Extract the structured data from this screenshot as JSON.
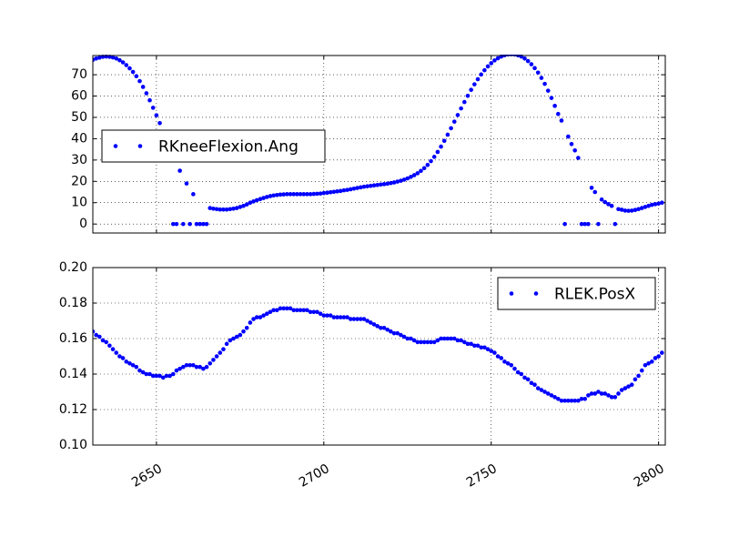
{
  "chart_data": [
    {
      "type": "scatter",
      "x": [
        2631,
        2632,
        2633,
        2634,
        2635,
        2636,
        2637,
        2638,
        2639,
        2640,
        2641,
        2642,
        2643,
        2644,
        2645,
        2646,
        2647,
        2648,
        2649,
        2650,
        2651,
        2652,
        2653,
        2654,
        2655,
        2656,
        2657,
        2658,
        2659,
        2660,
        2661,
        2662,
        2663,
        2664,
        2665,
        2666,
        2667,
        2668,
        2669,
        2670,
        2671,
        2672,
        2673,
        2674,
        2675,
        2676,
        2677,
        2678,
        2679,
        2680,
        2681,
        2682,
        2683,
        2684,
        2685,
        2686,
        2687,
        2688,
        2689,
        2690,
        2691,
        2692,
        2693,
        2694,
        2695,
        2696,
        2697,
        2698,
        2699,
        2700,
        2701,
        2702,
        2703,
        2704,
        2705,
        2706,
        2707,
        2708,
        2709,
        2710,
        2711,
        2712,
        2713,
        2714,
        2715,
        2716,
        2717,
        2718,
        2719,
        2720,
        2721,
        2722,
        2723,
        2724,
        2725,
        2726,
        2727,
        2728,
        2729,
        2730,
        2731,
        2732,
        2733,
        2734,
        2735,
        2736,
        2737,
        2738,
        2739,
        2740,
        2741,
        2742,
        2743,
        2744,
        2745,
        2746,
        2747,
        2748,
        2749,
        2750,
        2751,
        2752,
        2753,
        2754,
        2755,
        2756,
        2757,
        2758,
        2759,
        2760,
        2761,
        2762,
        2763,
        2764,
        2765,
        2766,
        2767,
        2768,
        2769,
        2770,
        2771,
        2772,
        2773,
        2774,
        2775,
        2776,
        2777,
        2778,
        2779,
        2780,
        2781,
        2782,
        2783,
        2784,
        2785,
        2786,
        2787,
        2788,
        2789,
        2790,
        2791,
        2792,
        2793,
        2794,
        2795,
        2796,
        2797,
        2798,
        2799,
        2800,
        2801
      ],
      "series": [
        {
          "name": "RKneeFlexion.Ang",
          "color": "#0000ff",
          "values": [
            77,
            77.6,
            78,
            78.4,
            78.5,
            78.4,
            78.1,
            77.6,
            76.8,
            75.8,
            74.5,
            73,
            71.3,
            69.3,
            67,
            64.3,
            61.3,
            58,
            54.5,
            51,
            47.3,
            null,
            null,
            null,
            0,
            0,
            25,
            0,
            19,
            0,
            14,
            0,
            0,
            0,
            0,
            7.5,
            7.2,
            7,
            6.8,
            6.8,
            6.8,
            7,
            7.2,
            7.5,
            8,
            8.5,
            9.2,
            10,
            10.6,
            11.2,
            11.7,
            12.2,
            12.7,
            13.1,
            13.4,
            13.6,
            13.8,
            13.9,
            14,
            14,
            14,
            14,
            14,
            14,
            14,
            14,
            14.1,
            14.2,
            14.3,
            14.5,
            14.7,
            14.9,
            15.1,
            15.3,
            15.5,
            15.8,
            16,
            16.3,
            16.6,
            16.9,
            17.2,
            17.5,
            17.7,
            17.9,
            18.1,
            18.3,
            18.5,
            18.7,
            18.9,
            19.2,
            19.5,
            19.9,
            20.3,
            20.8,
            21.4,
            22.1,
            22.9,
            23.8,
            24.9,
            26.2,
            27.7,
            29.5,
            31.5,
            33.8,
            36.3,
            39,
            41.9,
            44.9,
            48,
            51.1,
            54.2,
            57.2,
            60.1,
            62.9,
            65.5,
            67.9,
            70.1,
            72.1,
            73.9,
            75.4,
            76.7,
            77.7,
            78.5,
            79.1,
            79.5,
            79.6,
            79.5,
            79.1,
            78.5,
            77.6,
            76.4,
            74.9,
            73.1,
            71,
            68.5,
            65.7,
            62.5,
            59.1,
            55.4,
            51.6,
            48.5,
            0,
            41,
            37.5,
            34.5,
            31,
            0,
            0,
            0,
            17,
            15,
            0,
            11.5,
            10.3,
            9.3,
            8.5,
            0,
            7,
            6.7,
            6.3,
            6.2,
            6.3,
            6.6,
            7,
            7.5,
            8,
            8.5,
            9,
            9.3,
            9.6,
            10
          ]
        }
      ],
      "xlim": [
        2631,
        2802
      ],
      "ylim": [
        -4.2,
        79
      ],
      "xticks": [
        2650,
        2700,
        2750,
        2800
      ],
      "yticks": [
        0,
        10,
        20,
        30,
        40,
        50,
        60,
        70
      ],
      "grid": true,
      "legend": "center left"
    },
    {
      "type": "scatter",
      "x": [
        2631,
        2632,
        2633,
        2634,
        2635,
        2636,
        2637,
        2638,
        2639,
        2640,
        2641,
        2642,
        2643,
        2644,
        2645,
        2646,
        2647,
        2648,
        2649,
        2650,
        2651,
        2652,
        2653,
        2654,
        2655,
        2656,
        2657,
        2658,
        2659,
        2660,
        2661,
        2662,
        2663,
        2664,
        2665,
        2666,
        2667,
        2668,
        2669,
        2670,
        2671,
        2672,
        2673,
        2674,
        2675,
        2676,
        2677,
        2678,
        2679,
        2680,
        2681,
        2682,
        2683,
        2684,
        2685,
        2686,
        2687,
        2688,
        2689,
        2690,
        2691,
        2692,
        2693,
        2694,
        2695,
        2696,
        2697,
        2698,
        2699,
        2700,
        2701,
        2702,
        2703,
        2704,
        2705,
        2706,
        2707,
        2708,
        2709,
        2710,
        2711,
        2712,
        2713,
        2714,
        2715,
        2716,
        2717,
        2718,
        2719,
        2720,
        2721,
        2722,
        2723,
        2724,
        2725,
        2726,
        2727,
        2728,
        2729,
        2730,
        2731,
        2732,
        2733,
        2734,
        2735,
        2736,
        2737,
        2738,
        2739,
        2740,
        2741,
        2742,
        2743,
        2744,
        2745,
        2746,
        2747,
        2748,
        2749,
        2750,
        2751,
        2752,
        2753,
        2754,
        2755,
        2756,
        2757,
        2758,
        2759,
        2760,
        2761,
        2762,
        2763,
        2764,
        2765,
        2766,
        2767,
        2768,
        2769,
        2770,
        2771,
        2772,
        2773,
        2774,
        2775,
        2776,
        2777,
        2778,
        2779,
        2780,
        2781,
        2782,
        2783,
        2784,
        2785,
        2786,
        2787,
        2788,
        2789,
        2790,
        2791,
        2792,
        2793,
        2794,
        2795,
        2796,
        2797,
        2798,
        2799,
        2800,
        2801
      ],
      "series": [
        {
          "name": "RLEK.PosX",
          "color": "#0000ff",
          "values": [
            0.164,
            0.162,
            0.161,
            0.159,
            0.158,
            0.156,
            0.154,
            0.152,
            0.15,
            0.149,
            0.147,
            0.146,
            0.145,
            0.144,
            0.142,
            0.141,
            0.14,
            0.14,
            0.139,
            0.139,
            0.139,
            0.138,
            0.139,
            0.139,
            0.14,
            0.142,
            0.143,
            0.144,
            0.145,
            0.145,
            0.145,
            0.144,
            0.144,
            0.143,
            0.144,
            0.146,
            0.148,
            0.15,
            0.152,
            0.154,
            0.157,
            0.159,
            0.16,
            0.161,
            0.162,
            0.164,
            0.166,
            0.169,
            0.171,
            0.172,
            0.172,
            0.173,
            0.174,
            0.175,
            0.176,
            0.176,
            0.177,
            0.177,
            0.177,
            0.177,
            0.176,
            0.176,
            0.176,
            0.176,
            0.176,
            0.175,
            0.175,
            0.175,
            0.174,
            0.173,
            0.173,
            0.173,
            0.172,
            0.172,
            0.172,
            0.172,
            0.172,
            0.171,
            0.171,
            0.171,
            0.171,
            0.171,
            0.17,
            0.169,
            0.168,
            0.167,
            0.166,
            0.166,
            0.165,
            0.164,
            0.163,
            0.163,
            0.162,
            0.161,
            0.16,
            0.16,
            0.159,
            0.158,
            0.158,
            0.158,
            0.158,
            0.158,
            0.158,
            0.159,
            0.16,
            0.16,
            0.16,
            0.16,
            0.16,
            0.159,
            0.159,
            0.158,
            0.157,
            0.157,
            0.156,
            0.156,
            0.155,
            0.155,
            0.154,
            0.153,
            0.152,
            0.15,
            0.149,
            0.147,
            0.146,
            0.145,
            0.143,
            0.141,
            0.14,
            0.138,
            0.137,
            0.135,
            0.134,
            0.132,
            0.131,
            0.13,
            0.129,
            0.128,
            0.127,
            0.126,
            0.125,
            0.125,
            0.125,
            0.125,
            0.125,
            0.125,
            0.126,
            0.126,
            0.128,
            0.129,
            0.129,
            0.13,
            0.129,
            0.129,
            0.128,
            0.127,
            0.127,
            0.129,
            0.131,
            0.132,
            0.133,
            0.134,
            0.137,
            0.139,
            0.142,
            0.145,
            0.146,
            0.147,
            0.149,
            0.15,
            0.152
          ]
        }
      ],
      "xlim": [
        2631,
        2802
      ],
      "ylim": [
        0.1,
        0.2
      ],
      "xticks": [
        2650,
        2700,
        2750,
        2800
      ],
      "yticks": [
        {
          "value": 0.1,
          "label": "0.10"
        },
        {
          "value": 0.12,
          "label": "0.12"
        },
        {
          "value": 0.14,
          "label": "0.14"
        },
        {
          "value": 0.16,
          "label": "0.16"
        },
        {
          "value": 0.18,
          "label": "0.18"
        },
        {
          "value": 0.2,
          "label": "0.20"
        }
      ],
      "grid": true,
      "legend": "upper right"
    }
  ]
}
